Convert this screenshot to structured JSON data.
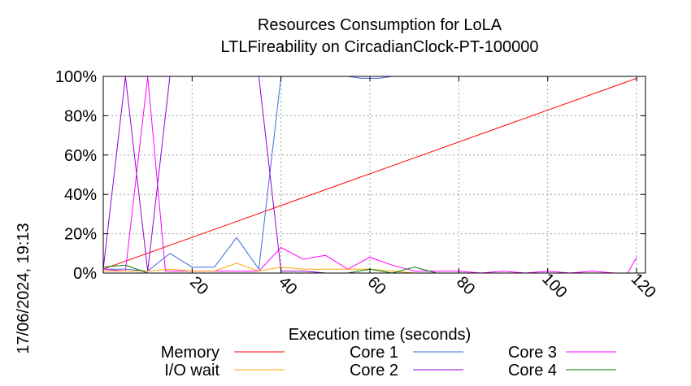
{
  "chart_data": {
    "type": "line",
    "title": "Resources Consumption for LoLA",
    "subtitle": "LTLFireability on CircadianClock-PT-100000",
    "xlabel": "Execution time (seconds)",
    "ylabel": "",
    "timestamp": "17/06/2024, 19:13",
    "xlim": [
      0,
      122
    ],
    "ylim": [
      0,
      100
    ],
    "x_ticks": [
      20,
      40,
      60,
      80,
      100,
      120
    ],
    "y_ticks": [
      0,
      20,
      40,
      60,
      80,
      100
    ],
    "y_tick_labels": [
      "0%",
      "20%",
      "40%",
      "60%",
      "80%",
      "100%"
    ],
    "grid": true,
    "legend_position": "bottom",
    "series": [
      {
        "name": "Memory",
        "color": "#ff0000",
        "x": [
          0,
          120
        ],
        "y": [
          2,
          99
        ]
      },
      {
        "name": "Core 1",
        "color": "#4169e1",
        "x": [
          0,
          5,
          10,
          15,
          20,
          25,
          30,
          35,
          40,
          45,
          50,
          55,
          58,
          60,
          62,
          65,
          70,
          80,
          90,
          100,
          110,
          120
        ],
        "y": [
          2,
          2,
          1,
          10,
          3,
          3,
          18,
          2,
          100,
          100,
          100,
          100,
          99,
          99,
          99,
          100,
          100,
          100,
          100,
          100,
          100,
          100
        ]
      },
      {
        "name": "Core 3",
        "color": "#ff00ff",
        "x": [
          0,
          5,
          10,
          14,
          20,
          25,
          30,
          35,
          40,
          45,
          50,
          55,
          60,
          65,
          70,
          75,
          80,
          85,
          90,
          95,
          100,
          105,
          110,
          115,
          118,
          120
        ],
        "y": [
          2,
          1,
          100,
          1,
          1,
          1,
          1,
          1,
          13,
          7,
          9,
          2,
          8,
          4,
          1,
          1,
          1,
          0,
          1,
          0,
          1,
          0,
          1,
          0,
          0,
          8
        ]
      },
      {
        "name": "I/O wait",
        "color": "#ffa500",
        "x": [
          0,
          5,
          10,
          15,
          20,
          25,
          30,
          35,
          40,
          45,
          50,
          55,
          60,
          65,
          70,
          80,
          90,
          100,
          110,
          120
        ],
        "y": [
          1,
          1,
          1,
          2,
          1,
          1,
          5,
          1,
          3,
          2,
          2,
          2,
          2,
          1,
          0,
          0,
          0,
          0,
          0,
          0
        ]
      },
      {
        "name": "Core 2",
        "color": "#9400d3",
        "x": [
          0,
          5,
          10,
          15,
          20,
          25,
          30,
          35,
          40,
          45,
          50,
          60,
          70,
          80,
          90,
          100,
          110,
          120
        ],
        "y": [
          2,
          100,
          1,
          100,
          100,
          100,
          100,
          100,
          1,
          1,
          0,
          0,
          0,
          0,
          0,
          0,
          0,
          0
        ]
      },
      {
        "name": "Core 4",
        "color": "#008000",
        "x": [
          0,
          5,
          10,
          15,
          20,
          30,
          40,
          50,
          55,
          60,
          65,
          70,
          75,
          80,
          90,
          100,
          110,
          120
        ],
        "y": [
          3,
          4,
          0,
          0,
          0,
          0,
          0,
          0,
          0,
          2,
          0,
          3,
          0,
          0,
          0,
          0,
          0,
          0
        ]
      }
    ],
    "legend": [
      {
        "name": "Memory",
        "color": "#ff0000"
      },
      {
        "name": "Core 1",
        "color": "#4169e1"
      },
      {
        "name": "Core 3",
        "color": "#ff00ff"
      },
      {
        "name": "I/O wait",
        "color": "#ffa500"
      },
      {
        "name": "Core 2",
        "color": "#9400d3"
      },
      {
        "name": "Core 4",
        "color": "#008000"
      }
    ]
  }
}
